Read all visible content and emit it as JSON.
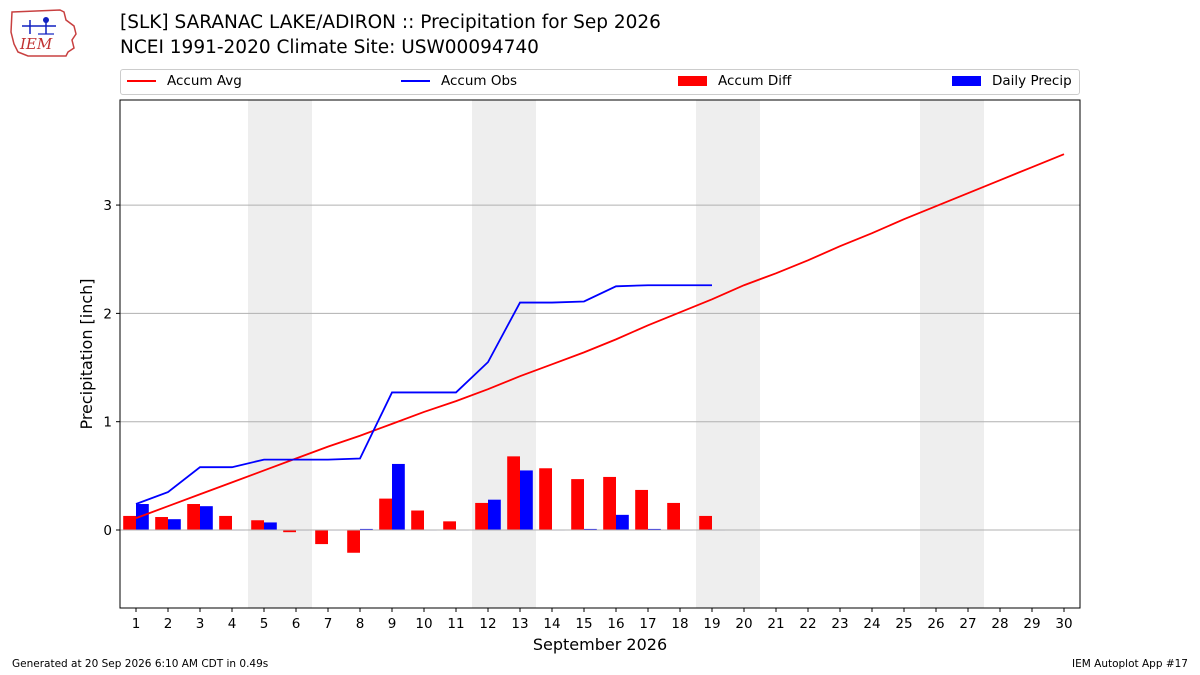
{
  "header": {
    "title_line1": "[SLK] SARANAC LAKE/ADIRON :: Precipitation for Sep 2026",
    "title_line2": "NCEI 1991-2020 Climate Site: USW00094740",
    "logo_text": "IEM"
  },
  "legend": {
    "items": [
      {
        "label": "Accum Avg",
        "color": "#ff0000",
        "kind": "line"
      },
      {
        "label": "Accum Obs",
        "color": "#0000ff",
        "kind": "line"
      },
      {
        "label": "Accum Diff",
        "color": "#ff0000",
        "kind": "bar"
      },
      {
        "label": "Daily Precip",
        "color": "#0000ff",
        "kind": "bar"
      }
    ]
  },
  "footer": {
    "generated": "Generated at 20 Sep 2026 6:10 AM CDT in 0.49s",
    "app": "IEM Autoplot App #17"
  },
  "chart_data": {
    "type": "bar",
    "xlabel": "September 2026",
    "ylabel": "Precipitation [inch]",
    "xlim": [
      0.5,
      30.5
    ],
    "ylim": [
      -0.72,
      3.97
    ],
    "yticks": [
      0,
      1,
      2,
      3
    ],
    "days": [
      1,
      2,
      3,
      4,
      5,
      6,
      7,
      8,
      9,
      10,
      11,
      12,
      13,
      14,
      15,
      16,
      17,
      18,
      19,
      20,
      21,
      22,
      23,
      24,
      25,
      26,
      27,
      28,
      29,
      30
    ],
    "weekend_bands": [
      [
        4.5,
        6.5
      ],
      [
        11.5,
        13.5
      ],
      [
        18.5,
        20.5
      ],
      [
        25.5,
        27.5
      ]
    ],
    "grid": "horizontal",
    "colors": {
      "avg": "#ff0000",
      "obs": "#0000ff",
      "band": "#eeeeee",
      "grid": "#b0b0b0"
    },
    "series": [
      {
        "name": "Accum Avg",
        "kind": "line",
        "values": [
          0.11,
          0.22,
          0.33,
          0.44,
          0.55,
          0.66,
          0.77,
          0.87,
          0.98,
          1.09,
          1.19,
          1.3,
          1.42,
          1.53,
          1.64,
          1.76,
          1.89,
          2.01,
          2.13,
          2.26,
          2.37,
          2.49,
          2.62,
          2.74,
          2.87,
          2.99,
          3.11,
          3.23,
          3.35,
          3.47
        ]
      },
      {
        "name": "Accum Obs",
        "kind": "line",
        "values": [
          0.24,
          0.35,
          0.58,
          0.58,
          0.65,
          0.65,
          0.65,
          0.66,
          1.27,
          1.27,
          1.27,
          1.55,
          2.1,
          2.1,
          2.11,
          2.25,
          2.26,
          2.26,
          2.26
        ]
      },
      {
        "name": "Accum Diff",
        "kind": "bar",
        "values": [
          0.13,
          0.12,
          0.24,
          0.13,
          0.09,
          -0.02,
          -0.13,
          -0.21,
          0.29,
          0.18,
          0.08,
          0.25,
          0.68,
          0.57,
          0.47,
          0.49,
          0.37,
          0.25,
          0.13
        ]
      },
      {
        "name": "Daily Precip",
        "kind": "bar",
        "values": [
          0.24,
          0.1,
          0.22,
          0.0,
          0.07,
          0.0,
          0.0,
          0.01,
          0.61,
          0.0,
          0.0,
          0.28,
          0.55,
          0.0,
          0.01,
          0.14,
          0.01,
          0.0,
          0.0
        ]
      }
    ]
  }
}
